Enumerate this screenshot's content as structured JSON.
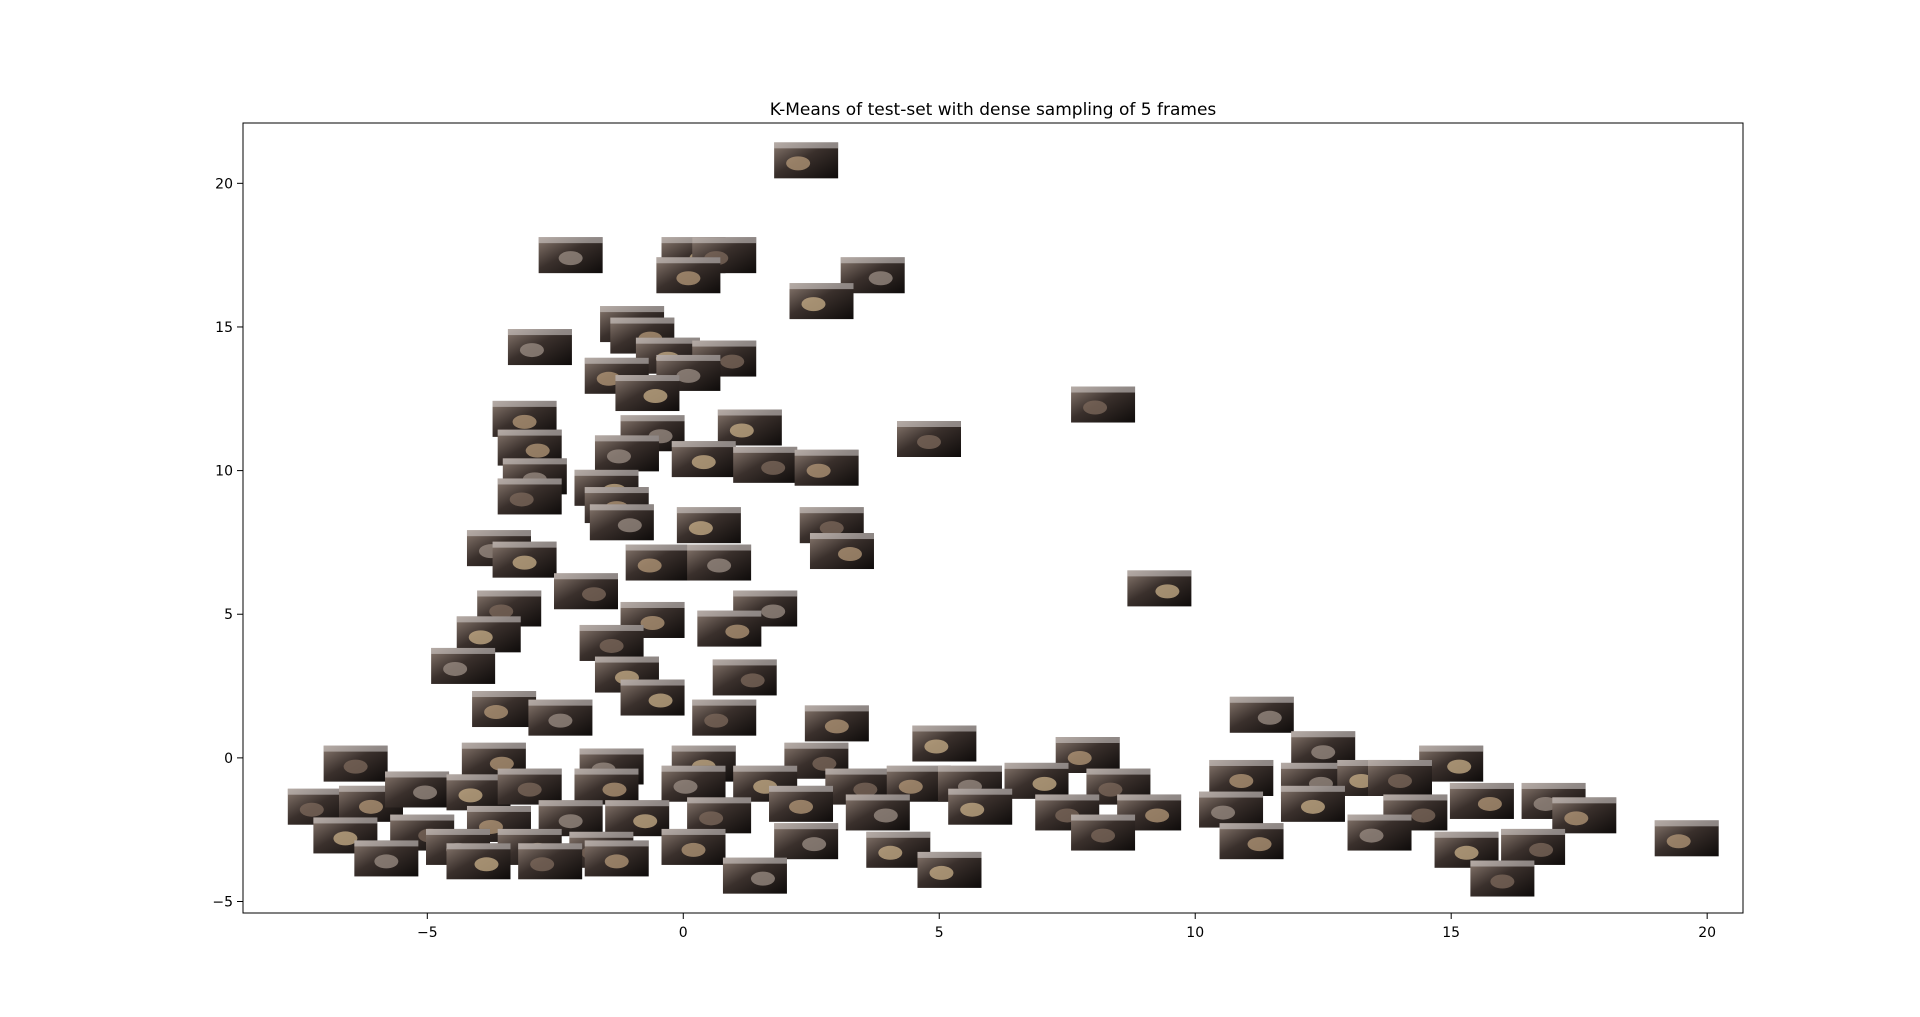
{
  "chart_data": {
    "type": "scatter",
    "title": "K-Means of test-set with dense sampling of 5 frames",
    "xlabel": "",
    "ylabel": "",
    "xlim": [
      -8.6,
      20.7
    ],
    "ylim": [
      -5.4,
      22.1
    ],
    "x_ticks": [
      -5,
      0,
      5,
      10,
      15,
      20
    ],
    "y_ticks": [
      -5,
      0,
      5,
      10,
      15,
      20
    ],
    "grid": false,
    "legend": "none",
    "marker": "image-thumbnail",
    "series": [
      {
        "points": [
          [
            2.4,
            20.8
          ],
          [
            -2.2,
            17.5
          ],
          [
            0.2,
            17.5
          ],
          [
            0.8,
            17.5
          ],
          [
            0.1,
            16.8
          ],
          [
            3.7,
            16.8
          ],
          [
            2.7,
            15.9
          ],
          [
            -1.0,
            15.1
          ],
          [
            -0.8,
            14.7
          ],
          [
            -2.8,
            14.3
          ],
          [
            -0.3,
            14.0
          ],
          [
            0.8,
            13.9
          ],
          [
            -1.3,
            13.3
          ],
          [
            0.1,
            13.4
          ],
          [
            -0.7,
            12.7
          ],
          [
            8.2,
            12.3
          ],
          [
            -3.1,
            11.8
          ],
          [
            -0.6,
            11.3
          ],
          [
            1.3,
            11.5
          ],
          [
            4.8,
            11.1
          ],
          [
            -3.0,
            10.8
          ],
          [
            -1.1,
            10.6
          ],
          [
            0.4,
            10.4
          ],
          [
            1.6,
            10.2
          ],
          [
            2.8,
            10.1
          ],
          [
            -2.9,
            9.8
          ],
          [
            -1.5,
            9.4
          ],
          [
            -3.0,
            9.1
          ],
          [
            -1.3,
            8.8
          ],
          [
            -1.2,
            8.2
          ],
          [
            0.5,
            8.1
          ],
          [
            2.9,
            8.1
          ],
          [
            3.1,
            7.2
          ],
          [
            -3.6,
            7.3
          ],
          [
            -3.1,
            6.9
          ],
          [
            -1.9,
            5.8
          ],
          [
            -0.5,
            6.8
          ],
          [
            0.7,
            6.8
          ],
          [
            9.3,
            5.9
          ],
          [
            -3.4,
            5.2
          ],
          [
            -0.6,
            4.8
          ],
          [
            1.6,
            5.2
          ],
          [
            -3.8,
            4.3
          ],
          [
            -1.4,
            4.0
          ],
          [
            0.9,
            4.5
          ],
          [
            -4.3,
            3.2
          ],
          [
            -1.1,
            2.9
          ],
          [
            1.2,
            2.8
          ],
          [
            -3.5,
            1.7
          ],
          [
            -2.4,
            1.4
          ],
          [
            -0.6,
            2.1
          ],
          [
            0.8,
            1.4
          ],
          [
            3.0,
            1.2
          ],
          [
            11.3,
            1.5
          ],
          [
            5.1,
            0.5
          ],
          [
            -6.4,
            -0.2
          ],
          [
            -3.7,
            -0.1
          ],
          [
            -1.4,
            -0.3
          ],
          [
            0.4,
            -0.2
          ],
          [
            2.6,
            -0.1
          ],
          [
            7.9,
            0.1
          ],
          [
            12.5,
            0.3
          ],
          [
            15.0,
            -0.2
          ],
          [
            -7.1,
            -1.7
          ],
          [
            -6.1,
            -1.6
          ],
          [
            -5.2,
            -1.1
          ],
          [
            -4.0,
            -1.2
          ],
          [
            -3.0,
            -1.0
          ],
          [
            -1.5,
            -1.0
          ],
          [
            0.2,
            -0.9
          ],
          [
            1.6,
            -0.9
          ],
          [
            3.4,
            -1.0
          ],
          [
            4.6,
            -0.9
          ],
          [
            5.6,
            -0.9
          ],
          [
            6.9,
            -0.8
          ],
          [
            8.5,
            -1.0
          ],
          [
            10.9,
            -0.7
          ],
          [
            12.3,
            -0.8
          ],
          [
            13.4,
            -0.7
          ],
          [
            14.0,
            -0.7
          ],
          [
            15.6,
            -1.5
          ],
          [
            17.0,
            -1.5
          ],
          [
            -6.6,
            -2.7
          ],
          [
            -5.1,
            -2.6
          ],
          [
            -3.6,
            -2.3
          ],
          [
            -2.2,
            -2.1
          ],
          [
            -0.9,
            -2.1
          ],
          [
            0.7,
            -2.0
          ],
          [
            2.3,
            -1.6
          ],
          [
            3.8,
            -1.9
          ],
          [
            5.8,
            -1.7
          ],
          [
            7.5,
            -1.9
          ],
          [
            9.1,
            -1.9
          ],
          [
            10.7,
            -1.8
          ],
          [
            12.3,
            -1.6
          ],
          [
            14.3,
            -1.9
          ],
          [
            17.6,
            -2.0
          ],
          [
            -4.4,
            -3.1
          ],
          [
            -3.0,
            -3.1
          ],
          [
            -1.6,
            -3.2
          ],
          [
            0.2,
            -3.1
          ],
          [
            2.4,
            -2.9
          ],
          [
            4.2,
            -3.2
          ],
          [
            8.2,
            -2.6
          ],
          [
            11.1,
            -2.9
          ],
          [
            13.6,
            -2.6
          ],
          [
            15.3,
            -3.2
          ],
          [
            16.6,
            -3.1
          ],
          [
            19.6,
            -2.8
          ],
          [
            -5.8,
            -3.5
          ],
          [
            -4.0,
            -3.6
          ],
          [
            -2.6,
            -3.6
          ],
          [
            -1.3,
            -3.5
          ],
          [
            1.4,
            -4.1
          ],
          [
            5.2,
            -3.9
          ],
          [
            16.0,
            -4.2
          ]
        ]
      }
    ]
  }
}
